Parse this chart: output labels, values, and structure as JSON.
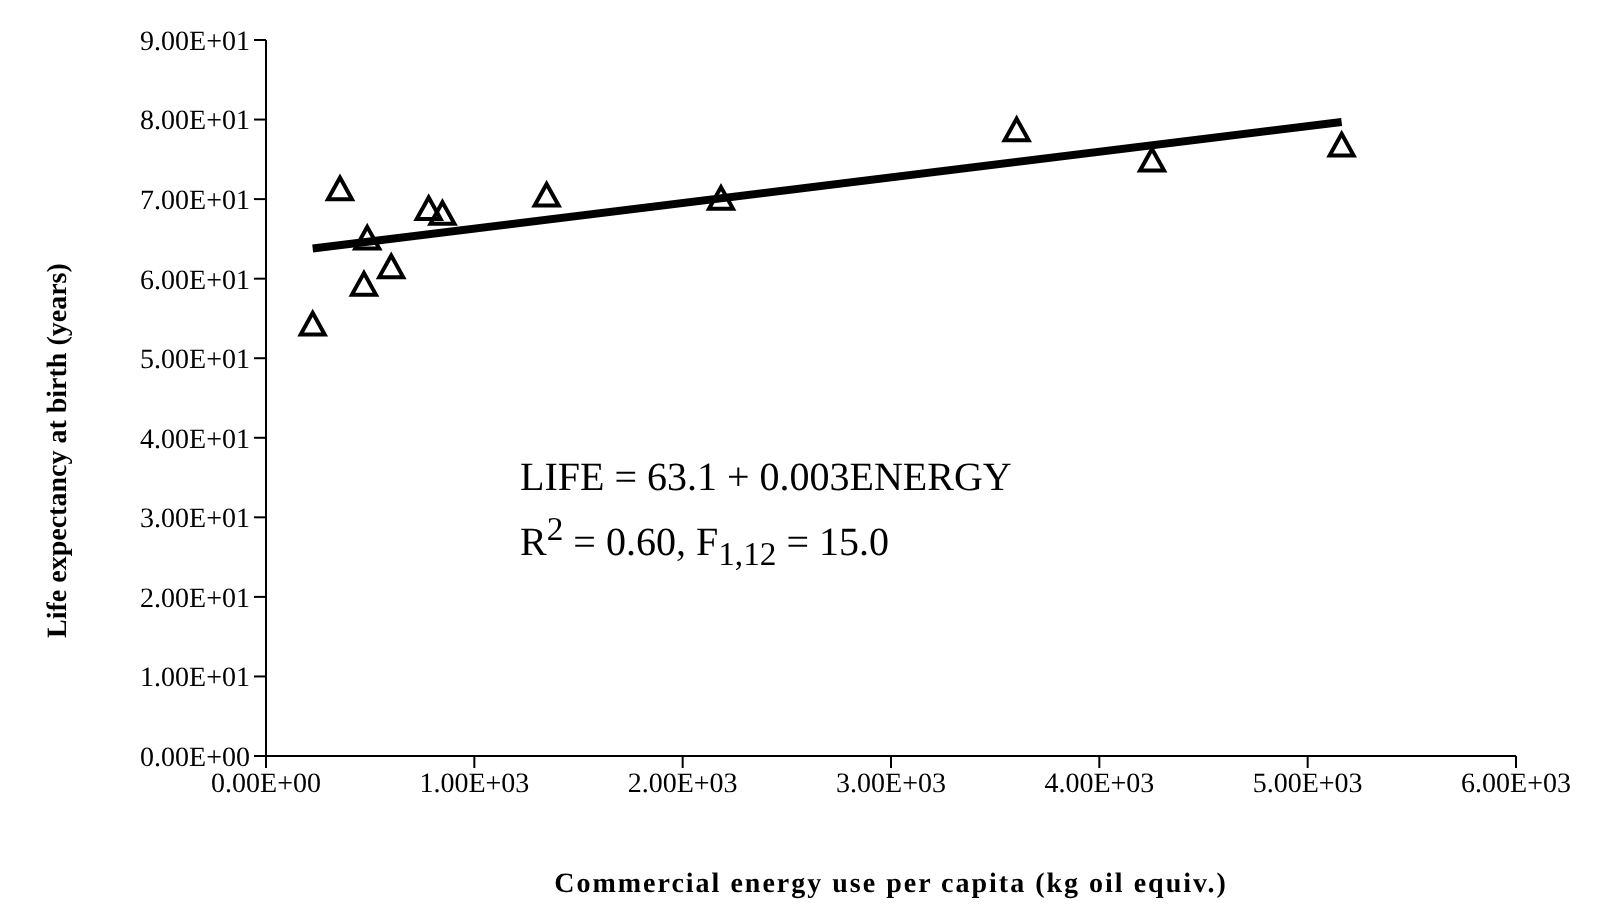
{
  "chart_data": {
    "type": "scatter",
    "xlabel": "Commercial energy use per capita (kg oil equiv.)",
    "ylabel": "Life expectancy at birth (years)",
    "series": [
      {
        "color": "#000000",
        "marker": "triangle",
        "x": [
          224,
          355,
          486,
          470,
          601,
          781,
          847,
          1347,
          2184,
          3603,
          4253,
          5163
        ],
        "values": [
          54.2,
          71.2,
          65,
          59.2,
          61.4,
          68.7,
          68.1,
          70.4,
          70,
          78.6,
          74.8,
          76.7
        ]
      },
      {
        "type": "line",
        "color": "#000000",
        "marker": "none",
        "x": [
          224,
          5163
        ],
        "values": [
          63.8,
          79.7
        ]
      }
    ],
    "xlim": [
      0,
      6000
    ],
    "ylim": [
      0,
      90
    ],
    "xticks": [
      {
        "value": 0,
        "label": "0.00E+00"
      },
      {
        "value": 1000,
        "label": "1.00E+03"
      },
      {
        "value": 2000,
        "label": "2.00E+03"
      },
      {
        "value": 3000,
        "label": "3.00E+03"
      },
      {
        "value": 4000,
        "label": "4.00E+03"
      },
      {
        "value": 5000,
        "label": "5.00E+03"
      },
      {
        "value": 6000,
        "label": "6.00E+03"
      }
    ],
    "yticks": [
      {
        "value": 0,
        "label": "0.00E+00"
      },
      {
        "value": 10,
        "label": "1.00E+01"
      },
      {
        "value": 20,
        "label": "2.00E+01"
      },
      {
        "value": 30,
        "label": "3.00E+01"
      },
      {
        "value": 40,
        "label": "4.00E+01"
      },
      {
        "value": 50,
        "label": "5.00E+01"
      },
      {
        "value": 60,
        "label": "6.00E+01"
      },
      {
        "value": 70,
        "label": "7.00E+01"
      },
      {
        "value": 80,
        "label": "8.00E+01"
      },
      {
        "value": 90,
        "label": "9.00E+01"
      }
    ],
    "annotations": [
      "LIFE = 63.1 + 0.003ENERGY",
      "R$^{2}$ = 0.60, F$_{1,12}$ = 15.0"
    ],
    "grid": false,
    "legend": false
  }
}
